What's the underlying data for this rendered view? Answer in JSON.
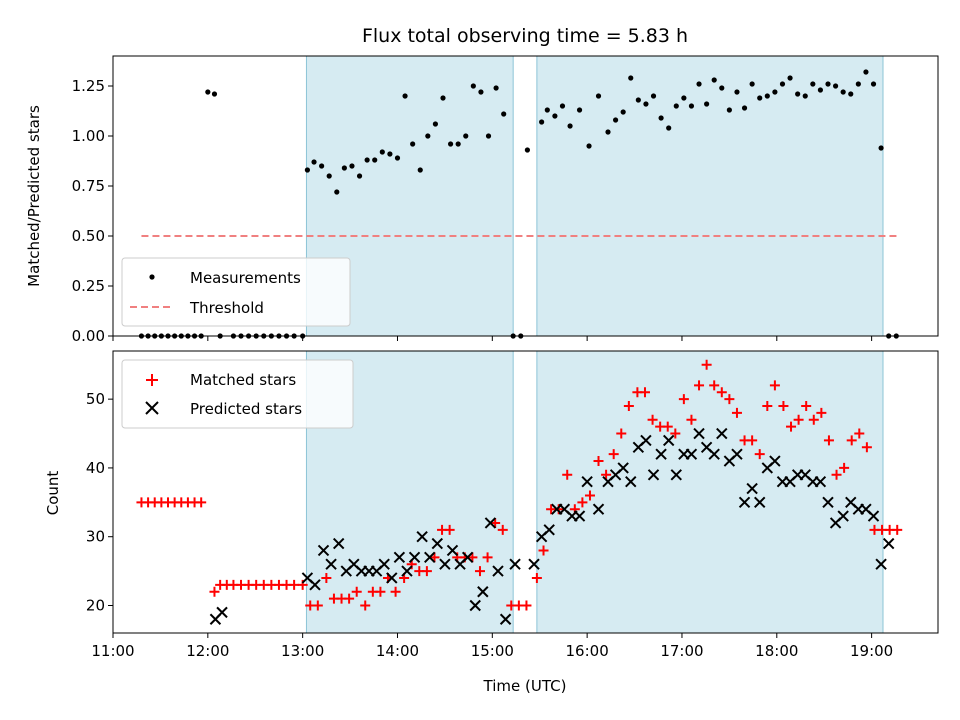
{
  "chart_data": [
    {
      "type": "scatter",
      "title": "Flux total observing time = 5.83 h",
      "xlabel": "",
      "ylabel": "Matched/Predicted stars",
      "ylim": [
        0,
        1.4
      ],
      "xlim": [
        11.0,
        19.7
      ],
      "yticks": [
        "0.00",
        "0.25",
        "0.50",
        "0.75",
        "1.00",
        "1.25"
      ],
      "legend_position": "lower-left",
      "shaded_intervals": [
        [
          13.04,
          15.22
        ],
        [
          15.47,
          19.12
        ]
      ],
      "series": [
        {
          "name": "Measurements",
          "marker": "dot",
          "color": "#000000",
          "x": [
            11.3,
            11.37,
            11.44,
            11.51,
            11.58,
            11.65,
            11.72,
            11.79,
            11.86,
            11.93,
            12.0,
            12.07,
            12.13,
            12.27,
            12.35,
            12.43,
            12.51,
            12.59,
            12.67,
            12.75,
            12.83,
            12.91,
            13.0,
            13.05,
            13.12,
            13.2,
            13.28,
            13.36,
            13.44,
            13.52,
            13.6,
            13.68,
            13.76,
            13.84,
            13.92,
            14.0,
            14.08,
            14.16,
            14.24,
            14.32,
            14.4,
            14.48,
            14.56,
            14.64,
            14.72,
            14.8,
            14.88,
            14.96,
            15.04,
            15.12,
            15.22,
            15.3,
            15.37,
            15.52,
            15.58,
            15.66,
            15.74,
            15.82,
            15.92,
            16.02,
            16.12,
            16.22,
            16.3,
            16.38,
            16.46,
            16.54,
            16.62,
            16.7,
            16.78,
            16.86,
            16.94,
            17.02,
            17.1,
            17.18,
            17.26,
            17.34,
            17.42,
            17.5,
            17.58,
            17.66,
            17.74,
            17.82,
            17.9,
            17.98,
            18.06,
            18.14,
            18.22,
            18.3,
            18.38,
            18.46,
            18.54,
            18.62,
            18.7,
            18.78,
            18.86,
            18.94,
            19.02,
            19.1,
            19.18,
            19.26
          ],
          "y": [
            0,
            0,
            0,
            0,
            0,
            0,
            0,
            0,
            0,
            0,
            1.22,
            1.21,
            0,
            0,
            0,
            0,
            0,
            0,
            0,
            0,
            0,
            0,
            0,
            0.83,
            0.87,
            0.85,
            0.8,
            0.72,
            0.84,
            0.85,
            0.8,
            0.88,
            0.88,
            0.92,
            0.91,
            0.89,
            1.2,
            0.96,
            0.83,
            1.0,
            1.06,
            1.19,
            0.96,
            0.96,
            1.0,
            1.25,
            1.22,
            1.0,
            1.24,
            1.11,
            0,
            0,
            0.93,
            1.07,
            1.13,
            1.1,
            1.15,
            1.05,
            1.13,
            0.95,
            1.2,
            1.02,
            1.08,
            1.12,
            1.29,
            1.18,
            1.16,
            1.2,
            1.09,
            1.04,
            1.15,
            1.19,
            1.15,
            1.26,
            1.16,
            1.28,
            1.24,
            1.13,
            1.22,
            1.14,
            1.26,
            1.19,
            1.2,
            1.22,
            1.26,
            1.29,
            1.21,
            1.2,
            1.26,
            1.23,
            1.26,
            1.25,
            1.22,
            1.21,
            1.26,
            1.32,
            1.26,
            0.94,
            0,
            0
          ]
        },
        {
          "name": "Threshold",
          "marker": "dashed-line",
          "color": "#f08080",
          "x": [
            11.3,
            19.3
          ],
          "y": [
            0.5,
            0.5
          ]
        }
      ]
    },
    {
      "type": "scatter",
      "title": "",
      "xlabel": "Time (UTC)",
      "ylabel": "Count",
      "ylim": [
        16,
        57
      ],
      "xlim": [
        11.0,
        19.7
      ],
      "xticks": [
        {
          "value": 11,
          "label": "11:00"
        },
        {
          "value": 12,
          "label": "12:00"
        },
        {
          "value": 13,
          "label": "13:00"
        },
        {
          "value": 14,
          "label": "14:00"
        },
        {
          "value": 15,
          "label": "15:00"
        },
        {
          "value": 16,
          "label": "16:00"
        },
        {
          "value": 17,
          "label": "17:00"
        },
        {
          "value": 18,
          "label": "18:00"
        },
        {
          "value": 19,
          "label": "19:00"
        }
      ],
      "yticks": [
        "20",
        "30",
        "40",
        "50"
      ],
      "legend_position": "upper-left",
      "shaded_intervals": [
        [
          13.04,
          15.22
        ],
        [
          15.47,
          19.12
        ]
      ],
      "series": [
        {
          "name": "Matched stars",
          "marker": "plus",
          "color": "#ff0000",
          "x": [
            11.3,
            11.37,
            11.44,
            11.51,
            11.58,
            11.65,
            11.72,
            11.79,
            11.86,
            11.93,
            12.07,
            12.13,
            12.2,
            12.27,
            12.35,
            12.43,
            12.51,
            12.59,
            12.67,
            12.75,
            12.83,
            12.91,
            13.0,
            13.08,
            13.16,
            13.25,
            13.33,
            13.41,
            13.49,
            13.57,
            13.66,
            13.74,
            13.82,
            13.9,
            13.98,
            14.07,
            14.15,
            14.23,
            14.31,
            14.39,
            14.47,
            14.55,
            14.63,
            14.71,
            14.79,
            14.87,
            14.95,
            15.03,
            15.11,
            15.2,
            15.28,
            15.36,
            15.47,
            15.54,
            15.62,
            15.7,
            15.79,
            15.87,
            15.95,
            16.03,
            16.12,
            16.2,
            16.28,
            16.36,
            16.44,
            16.53,
            16.61,
            16.69,
            16.77,
            16.85,
            16.93,
            17.02,
            17.1,
            17.18,
            17.26,
            17.34,
            17.42,
            17.5,
            17.58,
            17.66,
            17.74,
            17.82,
            17.9,
            17.98,
            18.07,
            18.15,
            18.23,
            18.31,
            18.39,
            18.47,
            18.55,
            18.63,
            18.71,
            18.79,
            18.87,
            18.95,
            19.03,
            19.11,
            19.19,
            19.27
          ],
          "y": [
            35,
            35,
            35,
            35,
            35,
            35,
            35,
            35,
            35,
            35,
            22,
            23,
            23,
            23,
            23,
            23,
            23,
            23,
            23,
            23,
            23,
            23,
            23,
            20,
            20,
            24,
            21,
            21,
            21,
            22,
            20,
            22,
            22,
            24,
            22,
            24,
            26,
            25,
            25,
            27,
            31,
            31,
            27,
            27,
            27,
            25,
            27,
            32,
            31,
            20,
            20,
            20,
            24,
            28,
            34,
            34,
            39,
            34,
            35,
            36,
            41,
            39,
            42,
            45,
            49,
            51,
            51,
            47,
            46,
            46,
            45,
            50,
            47,
            52,
            55,
            52,
            51,
            50,
            48,
            44,
            44,
            42,
            49,
            52,
            49,
            46,
            47,
            49,
            47,
            48,
            44,
            39,
            40,
            44,
            45,
            43,
            31,
            31,
            31,
            31
          ],
          "x_note": ""
        },
        {
          "name": "Predicted stars",
          "marker": "x",
          "color": "#000000",
          "x": [
            12.08,
            12.15,
            13.05,
            13.13,
            13.22,
            13.3,
            13.38,
            13.46,
            13.54,
            13.62,
            13.7,
            13.78,
            13.86,
            13.94,
            14.02,
            14.1,
            14.18,
            14.26,
            14.34,
            14.42,
            14.5,
            14.58,
            14.66,
            14.74,
            14.82,
            14.9,
            14.98,
            15.06,
            15.14,
            15.24,
            15.44,
            15.52,
            15.6,
            15.68,
            15.76,
            15.84,
            15.92,
            16.0,
            16.12,
            16.22,
            16.3,
            16.38,
            16.46,
            16.54,
            16.62,
            16.7,
            16.78,
            16.86,
            16.94,
            17.02,
            17.1,
            17.18,
            17.26,
            17.34,
            17.42,
            17.5,
            17.58,
            17.66,
            17.74,
            17.82,
            17.9,
            17.98,
            18.06,
            18.14,
            18.22,
            18.3,
            18.38,
            18.46,
            18.54,
            18.62,
            18.7,
            18.78,
            18.86,
            18.94,
            19.02,
            19.1,
            19.18
          ],
          "y": [
            18,
            19,
            24,
            23,
            28,
            26,
            29,
            25,
            26,
            25,
            25,
            25,
            26,
            24,
            27,
            25,
            27,
            30,
            27,
            29,
            26,
            28,
            26,
            27,
            20,
            22,
            32,
            25,
            18,
            26,
            26,
            30,
            31,
            34,
            34,
            33,
            33,
            38,
            34,
            38,
            39,
            40,
            38,
            43,
            44,
            39,
            42,
            44,
            39,
            42,
            42,
            45,
            43,
            42,
            45,
            41,
            42,
            35,
            37,
            35,
            40,
            41,
            38,
            38,
            39,
            39,
            38,
            38,
            35,
            32,
            33,
            35,
            34,
            34,
            33,
            26,
            29
          ]
        }
      ]
    }
  ]
}
